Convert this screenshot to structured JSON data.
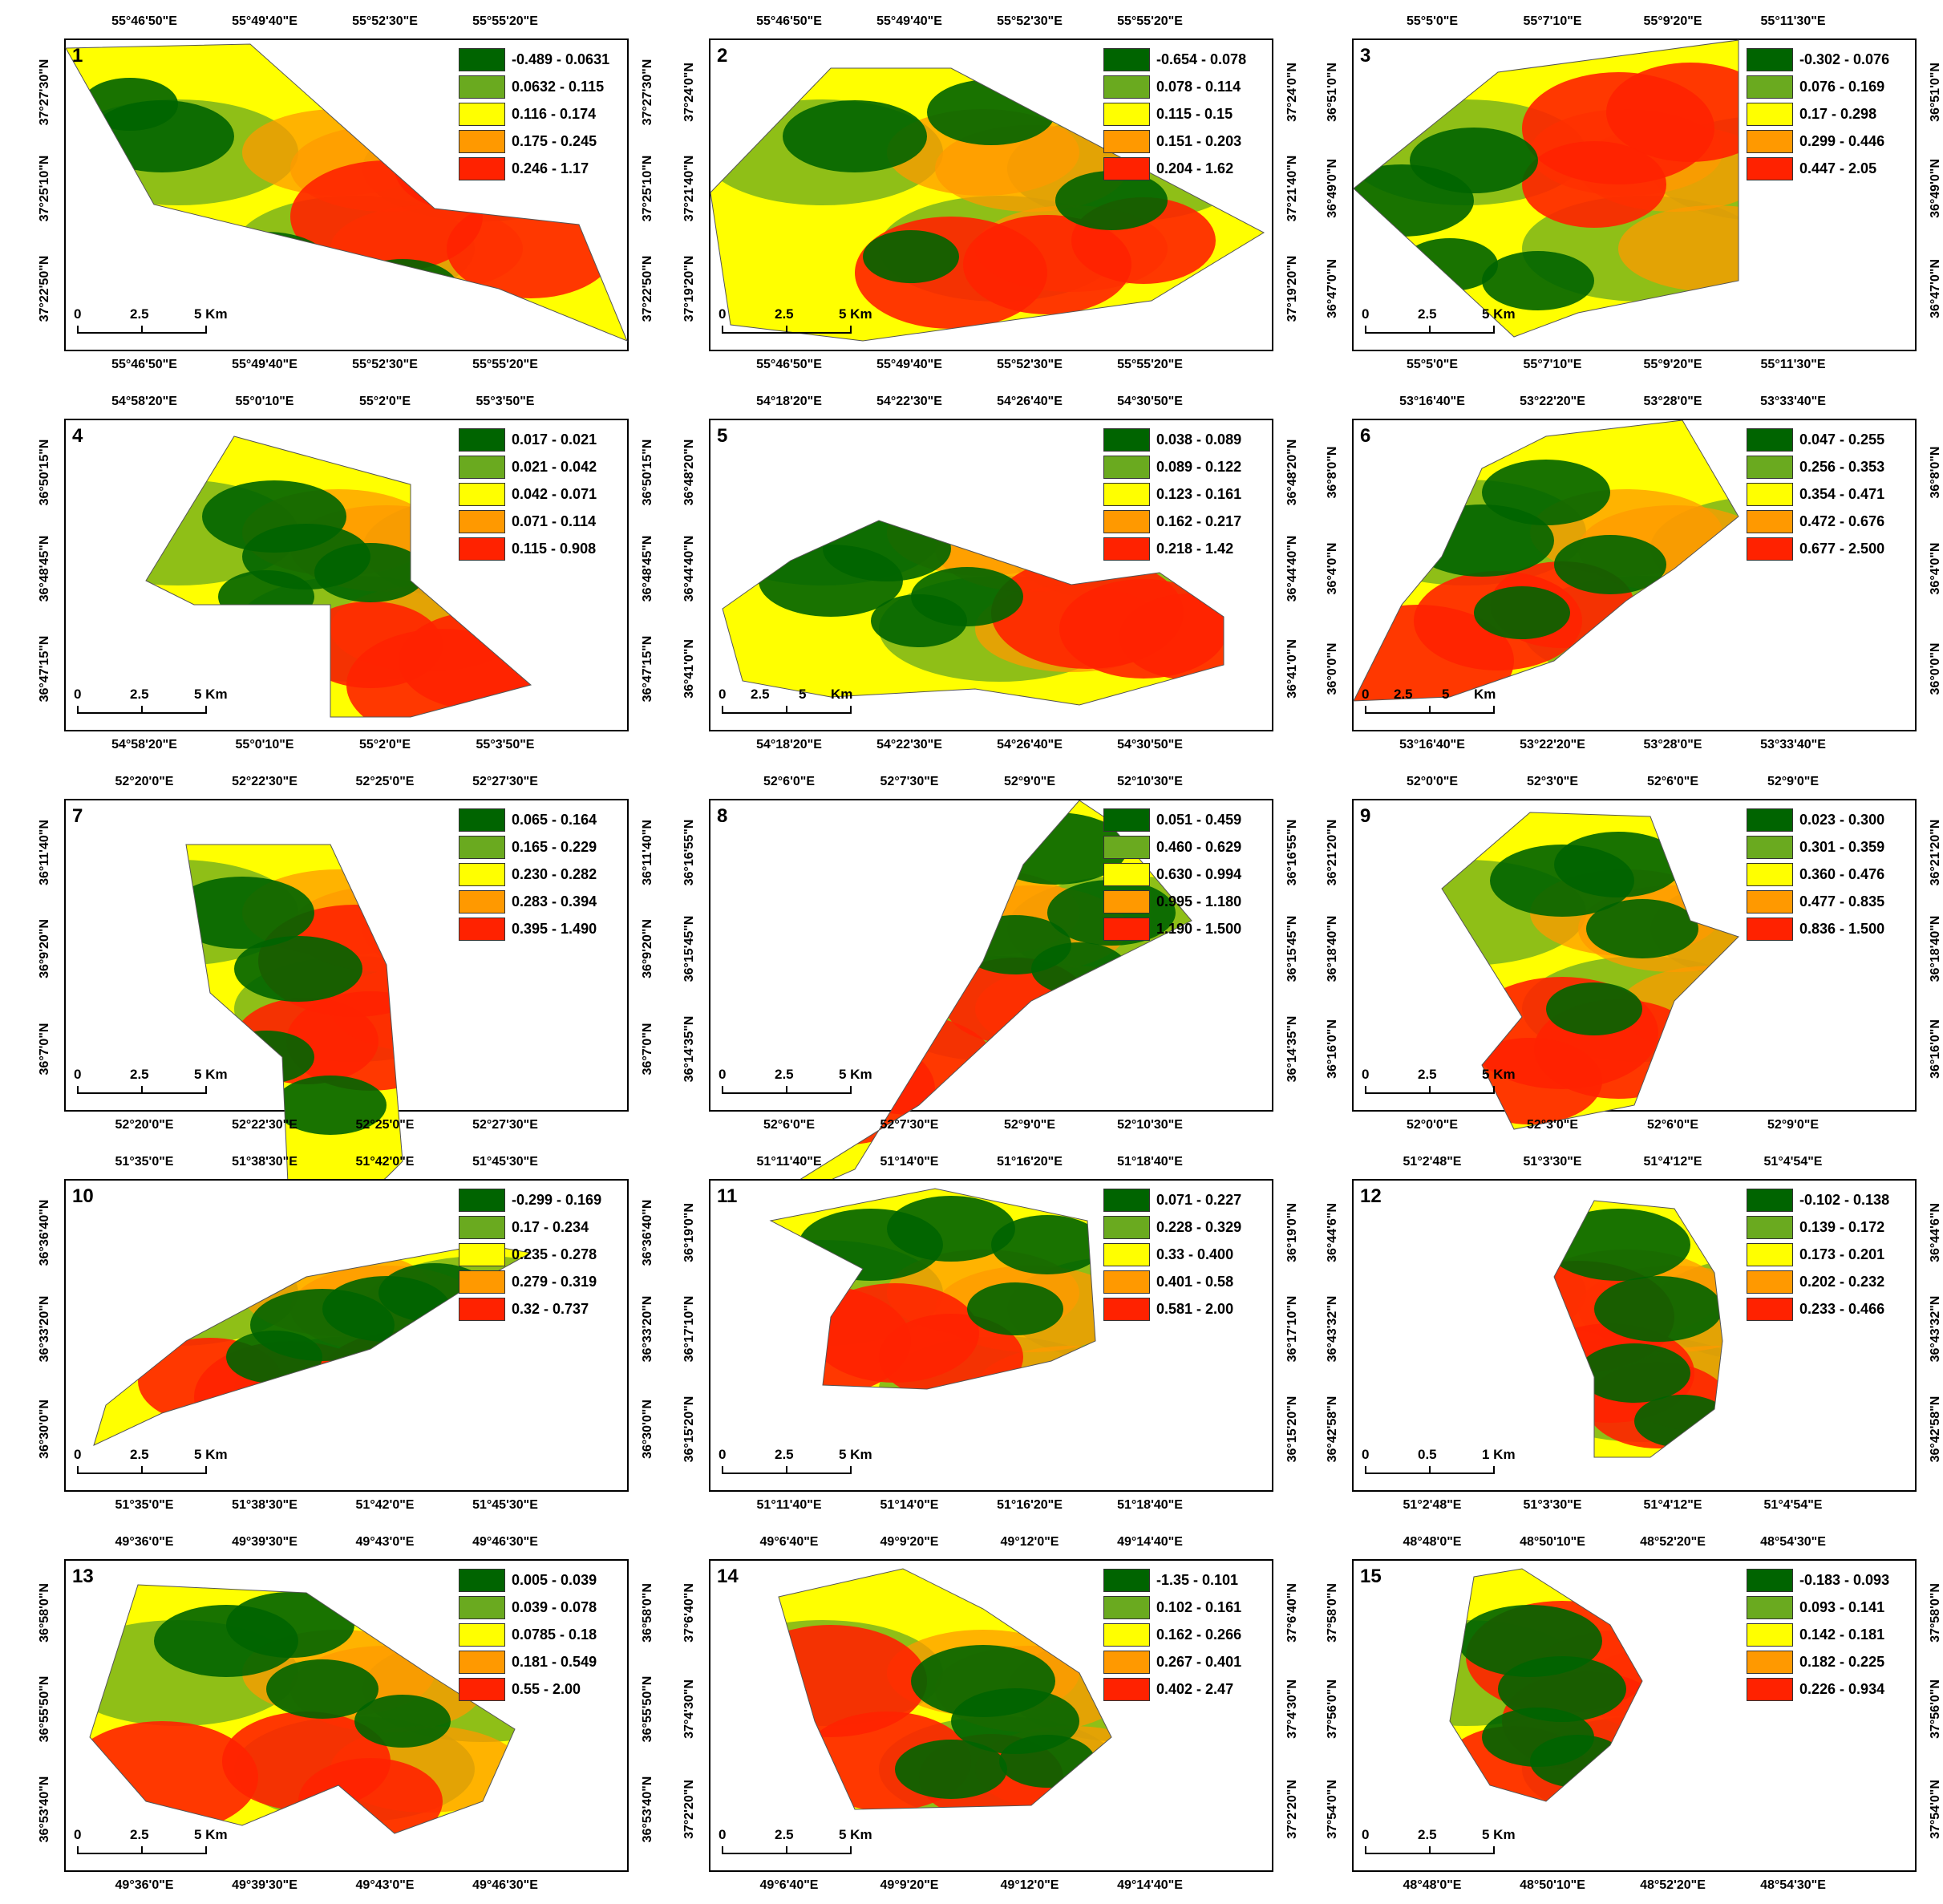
{
  "class_colors": [
    "#006400",
    "#6aaa1f",
    "#ffff00",
    "#ff9900",
    "#ff2200"
  ],
  "panels": [
    {
      "number": "1",
      "legend": [
        "-0.489 - 0.0631",
        "0.0632 - 0.115",
        "0.116 - 0.174",
        "0.175 - 0.245",
        "0.246 - 1.17"
      ],
      "top_ticks": [
        "55°46'50\"E",
        "55°49'40\"E",
        "55°52'30\"E",
        "55°55'20\"E"
      ],
      "bottom_ticks": [
        "55°46'50\"E",
        "55°49'40\"E",
        "55°52'30\"E",
        "55°55'20\"E"
      ],
      "left_ticks": [
        "37°27'30\"N",
        "37°25'10\"N",
        "37°22'50\"N"
      ],
      "right_ticks": [
        "37°27'30\"N",
        "37°25'10\"N",
        "37°22'50\"N"
      ],
      "scale": [
        "0",
        "2.5",
        "5 Km"
      ]
    },
    {
      "number": "2",
      "legend": [
        "-0.654 - 0.078",
        "0.078 - 0.114",
        "0.115 - 0.15",
        "0.151 - 0.203",
        "0.204 - 1.62"
      ],
      "top_ticks": [
        "55°46'50\"E",
        "55°49'40\"E",
        "55°52'30\"E",
        "55°55'20\"E"
      ],
      "bottom_ticks": [
        "55°46'50\"E",
        "55°49'40\"E",
        "55°52'30\"E",
        "55°55'20\"E"
      ],
      "left_ticks": [
        "37°24'0\"N",
        "37°21'40\"N",
        "37°19'20\"N"
      ],
      "right_ticks": [
        "37°24'0\"N",
        "37°21'40\"N",
        "37°19'20\"N"
      ],
      "scale": [
        "0",
        "2.5",
        "5 Km"
      ]
    },
    {
      "number": "3",
      "legend": [
        "-0.302 - 0.076",
        "0.076 - 0.169",
        "0.17 - 0.298",
        "0.299 - 0.446",
        "0.447 - 2.05"
      ],
      "top_ticks": [
        "55°5'0\"E",
        "55°7'10\"E",
        "55°9'20\"E",
        "55°11'30\"E"
      ],
      "bottom_ticks": [
        "55°5'0\"E",
        "55°7'10\"E",
        "55°9'20\"E",
        "55°11'30\"E"
      ],
      "left_ticks": [
        "36°51'0\"N",
        "36°49'0\"N",
        "36°47'0\"N"
      ],
      "right_ticks": [
        "36°51'0\"N",
        "36°49'0\"N",
        "36°47'0\"N"
      ],
      "scale": [
        "0",
        "2.5",
        "5 Km"
      ]
    },
    {
      "number": "4",
      "legend": [
        "0.017 - 0.021",
        "0.021 - 0.042",
        "0.042 - 0.071",
        "0.071 - 0.114",
        "0.115 - 0.908"
      ],
      "top_ticks": [
        "54°58'20\"E",
        "55°0'10\"E",
        "55°2'0\"E",
        "55°3'50\"E"
      ],
      "bottom_ticks": [
        "54°58'20\"E",
        "55°0'10\"E",
        "55°2'0\"E",
        "55°3'50\"E"
      ],
      "left_ticks": [
        "36°50'15\"N",
        "36°48'45\"N",
        "36°47'15\"N"
      ],
      "right_ticks": [
        "36°50'15\"N",
        "36°48'45\"N",
        "36°47'15\"N"
      ],
      "scale": [
        "0",
        "2.5",
        "5 Km"
      ]
    },
    {
      "number": "5",
      "legend": [
        "0.038 - 0.089",
        "0.089 - 0.122",
        "0.123 - 0.161",
        "0.162 - 0.217",
        "0.218 - 1.42"
      ],
      "top_ticks": [
        "54°18'20\"E",
        "54°22'30\"E",
        "54°26'40\"E",
        "54°30'50\"E"
      ],
      "bottom_ticks": [
        "54°18'20\"E",
        "54°22'30\"E",
        "54°26'40\"E",
        "54°30'50\"E"
      ],
      "left_ticks": [
        "36°48'20\"N",
        "36°44'40\"N",
        "36°41'0\"N"
      ],
      "right_ticks": [
        "36°48'20\"N",
        "36°44'40\"N",
        "36°41'0\"N"
      ],
      "scale": [
        "0",
        "2.5",
        "5",
        "Km"
      ]
    },
    {
      "number": "6",
      "legend": [
        "0.047 - 0.255",
        "0.256 - 0.353",
        "0.354 - 0.471",
        "0.472 - 0.676",
        "0.677 - 2.500"
      ],
      "top_ticks": [
        "53°16'40\"E",
        "53°22'20\"E",
        "53°28'0\"E",
        "53°33'40\"E"
      ],
      "bottom_ticks": [
        "53°16'40\"E",
        "53°22'20\"E",
        "53°28'0\"E",
        "53°33'40\"E"
      ],
      "left_ticks": [
        "36°8'0\"N",
        "36°4'0\"N",
        "36°0'0\"N"
      ],
      "right_ticks": [
        "36°8'0\"N",
        "36°4'0\"N",
        "36°0'0\"N"
      ],
      "scale": [
        "0",
        "2.5",
        "5",
        "Km"
      ]
    },
    {
      "number": "7",
      "legend": [
        "0.065 - 0.164",
        "0.165 - 0.229",
        "0.230 - 0.282",
        "0.283 - 0.394",
        "0.395 - 1.490"
      ],
      "top_ticks": [
        "52°20'0\"E",
        "52°22'30\"E",
        "52°25'0\"E",
        "52°27'30\"E"
      ],
      "bottom_ticks": [
        "52°20'0\"E",
        "52°22'30\"E",
        "52°25'0\"E",
        "52°27'30\"E"
      ],
      "left_ticks": [
        "36°11'40\"N",
        "36°9'20\"N",
        "36°7'0\"N"
      ],
      "right_ticks": [
        "36°11'40\"N",
        "36°9'20\"N",
        "36°7'0\"N"
      ],
      "scale": [
        "0",
        "2.5",
        "5 Km"
      ]
    },
    {
      "number": "8",
      "legend": [
        "0.051 - 0.459",
        "0.460 - 0.629",
        "0.630 - 0.994",
        "0.995 - 1.180",
        "1.190 - 1.500"
      ],
      "top_ticks": [
        "52°6'0\"E",
        "52°7'30\"E",
        "52°9'0\"E",
        "52°10'30\"E"
      ],
      "bottom_ticks": [
        "52°6'0\"E",
        "52°7'30\"E",
        "52°9'0\"E",
        "52°10'30\"E"
      ],
      "left_ticks": [
        "36°16'55\"N",
        "36°15'45\"N",
        "36°14'35\"N"
      ],
      "right_ticks": [
        "36°16'55\"N",
        "36°15'45\"N",
        "36°14'35\"N"
      ],
      "scale": [
        "0",
        "2.5",
        "5 Km"
      ]
    },
    {
      "number": "9",
      "legend": [
        "0.023 - 0.300",
        "0.301 - 0.359",
        "0.360 - 0.476",
        "0.477 - 0.835",
        "0.836 - 1.500"
      ],
      "top_ticks": [
        "52°0'0\"E",
        "52°3'0\"E",
        "52°6'0\"E",
        "52°9'0\"E"
      ],
      "bottom_ticks": [
        "52°0'0\"E",
        "52°3'0\"E",
        "52°6'0\"E",
        "52°9'0\"E"
      ],
      "left_ticks": [
        "36°21'20\"N",
        "36°18'40\"N",
        "36°16'0\"N"
      ],
      "right_ticks": [
        "36°21'20\"N",
        "36°18'40\"N",
        "36°16'0\"N"
      ],
      "scale": [
        "0",
        "2.5",
        "5 Km"
      ]
    },
    {
      "number": "10",
      "legend": [
        "-0.299 - 0.169",
        "0.17 - 0.234",
        "0.235 - 0.278",
        "0.279 - 0.319",
        "0.32 - 0.737"
      ],
      "top_ticks": [
        "51°35'0\"E",
        "51°38'30\"E",
        "51°42'0\"E",
        "51°45'30\"E"
      ],
      "bottom_ticks": [
        "51°35'0\"E",
        "51°38'30\"E",
        "51°42'0\"E",
        "51°45'30\"E"
      ],
      "left_ticks": [
        "36°36'40\"N",
        "36°33'20\"N",
        "36°30'0\"N"
      ],
      "right_ticks": [
        "36°36'40\"N",
        "36°33'20\"N",
        "36°30'0\"N"
      ],
      "scale": [
        "0",
        "2.5",
        "5 Km"
      ]
    },
    {
      "number": "11",
      "legend": [
        "0.071 - 0.227",
        "0.228 - 0.329",
        "0.33 - 0.400",
        "0.401 - 0.58",
        "0.581 - 2.00"
      ],
      "top_ticks": [
        "51°11'40\"E",
        "51°14'0\"E",
        "51°16'20\"E",
        "51°18'40\"E"
      ],
      "bottom_ticks": [
        "51°11'40\"E",
        "51°14'0\"E",
        "51°16'20\"E",
        "51°18'40\"E"
      ],
      "left_ticks": [
        "36°19'0\"N",
        "36°17'10\"N",
        "36°15'20\"N"
      ],
      "right_ticks": [
        "36°19'0\"N",
        "36°17'10\"N",
        "36°15'20\"N"
      ],
      "scale": [
        "0",
        "2.5",
        "5 Km"
      ]
    },
    {
      "number": "12",
      "legend": [
        "-0.102 - 0.138",
        "0.139 - 0.172",
        "0.173 - 0.201",
        "0.202 - 0.232",
        "0.233 - 0.466"
      ],
      "top_ticks": [
        "51°2'48\"E",
        "51°3'30\"E",
        "51°4'12\"E",
        "51°4'54\"E"
      ],
      "bottom_ticks": [
        "51°2'48\"E",
        "51°3'30\"E",
        "51°4'12\"E",
        "51°4'54\"E"
      ],
      "left_ticks": [
        "36°44'6\"N",
        "36°43'32\"N",
        "36°42'58\"N"
      ],
      "right_ticks": [
        "36°44'6\"N",
        "36°43'32\"N",
        "36°42'58\"N"
      ],
      "scale": [
        "0",
        "0.5",
        "1 Km"
      ]
    },
    {
      "number": "13",
      "legend": [
        "0.005 - 0.039",
        "0.039 - 0.078",
        "0.0785 - 0.18",
        "0.181 - 0.549",
        "0.55 - 2.00"
      ],
      "top_ticks": [
        "49°36'0\"E",
        "49°39'30\"E",
        "49°43'0\"E",
        "49°46'30\"E"
      ],
      "bottom_ticks": [
        "49°36'0\"E",
        "49°39'30\"E",
        "49°43'0\"E",
        "49°46'30\"E"
      ],
      "left_ticks": [
        "36°58'0\"N",
        "36°55'50\"N",
        "36°53'40\"N"
      ],
      "right_ticks": [
        "36°58'0\"N",
        "36°55'50\"N",
        "36°53'40\"N"
      ],
      "scale": [
        "0",
        "2.5",
        "5 Km"
      ]
    },
    {
      "number": "14",
      "legend": [
        "-1.35 - 0.101",
        "0.102 - 0.161",
        "0.162 - 0.266",
        "0.267 - 0.401",
        "0.402 - 2.47"
      ],
      "top_ticks": [
        "49°6'40\"E",
        "49°9'20\"E",
        "49°12'0\"E",
        "49°14'40\"E"
      ],
      "bottom_ticks": [
        "49°6'40\"E",
        "49°9'20\"E",
        "49°12'0\"E",
        "49°14'40\"E"
      ],
      "left_ticks": [
        "37°6'40\"N",
        "37°4'30\"N",
        "37°2'20\"N"
      ],
      "right_ticks": [
        "37°6'40\"N",
        "37°4'30\"N",
        "37°2'20\"N"
      ],
      "scale": [
        "0",
        "2.5",
        "5 Km"
      ]
    },
    {
      "number": "15",
      "legend": [
        "-0.183 - 0.093",
        "0.093 - 0.141",
        "0.142 - 0.181",
        "0.182 - 0.225",
        "0.226 - 0.934"
      ],
      "top_ticks": [
        "48°48'0\"E",
        "48°50'10\"E",
        "48°52'20\"E",
        "48°54'30\"E"
      ],
      "bottom_ticks": [
        "48°48'0\"E",
        "48°50'10\"E",
        "48°52'20\"E",
        "48°54'30\"E"
      ],
      "left_ticks": [
        "37°58'0\"N",
        "37°56'0\"N",
        "37°54'0\"N"
      ],
      "right_ticks": [
        "37°58'0\"N",
        "37°56'0\"N",
        "37°54'0\"N"
      ],
      "scale": [
        "0",
        "2.5",
        "5 Km"
      ]
    }
  ]
}
